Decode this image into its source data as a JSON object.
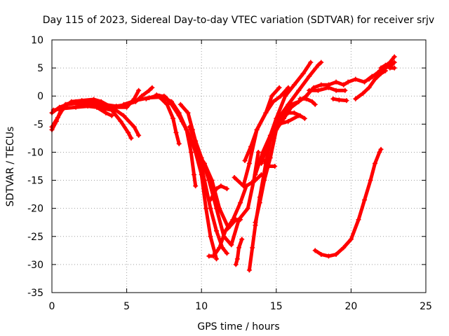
{
  "chart_data": {
    "type": "scatter",
    "title": "Day 115 of 2023, Sidereal Day-to-day VTEC variation (SDTVAR) for receiver srjv",
    "xlabel": "GPS time / hours",
    "ylabel": "SDTVAR / TECUs",
    "xlim": [
      0,
      25
    ],
    "ylim": [
      -35,
      10
    ],
    "xticks": [
      "0",
      "5",
      "10",
      "15",
      "20",
      "25"
    ],
    "yticks": [
      "-35",
      "-30",
      "-25",
      "-20",
      "-15",
      "-10",
      "-5",
      "0",
      "5",
      "10"
    ],
    "grid": true,
    "marker": "plus",
    "color": "#ff0000",
    "series": [
      {
        "points": [
          [
            0.0,
            -6.0
          ],
          [
            0.3,
            -4.5
          ],
          [
            0.6,
            -2.5
          ],
          [
            0.9,
            -1.5
          ],
          [
            1.3,
            -1.2
          ],
          [
            2.0,
            -1.5
          ],
          [
            3.0,
            -2.0
          ],
          [
            4.0,
            -2.5
          ],
          [
            4.6,
            -4.5
          ],
          [
            5.1,
            -6.5
          ],
          [
            5.3,
            -7.5
          ]
        ]
      },
      {
        "points": [
          [
            0.0,
            -5.5
          ],
          [
            0.4,
            -3.8
          ],
          [
            0.8,
            -2.0
          ],
          [
            1.3,
            -1.0
          ],
          [
            2.0,
            -0.8
          ],
          [
            2.8,
            -0.6
          ],
          [
            3.3,
            -1.0
          ],
          [
            4.0,
            -2.0
          ],
          [
            5.0,
            -2.0
          ],
          [
            5.5,
            -0.5
          ],
          [
            5.8,
            1.0
          ]
        ]
      },
      {
        "points": [
          [
            0.0,
            -3.0
          ],
          [
            0.5,
            -2.0
          ],
          [
            1.0,
            -1.5
          ],
          [
            2.0,
            -1.2
          ],
          [
            3.0,
            -1.5
          ],
          [
            4.0,
            -2.0
          ],
          [
            4.8,
            -3.5
          ],
          [
            5.5,
            -5.5
          ],
          [
            5.8,
            -7.0
          ]
        ]
      },
      {
        "points": [
          [
            0.1,
            -2.5
          ],
          [
            0.8,
            -2.2
          ],
          [
            1.6,
            -2.0
          ],
          [
            2.4,
            -1.8
          ],
          [
            3.0,
            -2.0
          ],
          [
            3.6,
            -3.0
          ],
          [
            4.0,
            -3.5
          ]
        ]
      },
      {
        "points": [
          [
            1.6,
            -1.0
          ],
          [
            2.5,
            -1.0
          ],
          [
            3.5,
            -1.5
          ],
          [
            4.3,
            -1.8
          ],
          [
            5.0,
            -1.5
          ],
          [
            5.6,
            -1.0
          ],
          [
            6.0,
            0.0
          ],
          [
            6.5,
            1.0
          ],
          [
            6.7,
            1.5
          ]
        ]
      },
      {
        "points": [
          [
            4.8,
            -1.5
          ],
          [
            5.6,
            -0.8
          ],
          [
            6.5,
            -0.3
          ],
          [
            7.2,
            -0.2
          ],
          [
            7.7,
            -1.5
          ],
          [
            8.1,
            -4.0
          ],
          [
            8.3,
            -6.5
          ],
          [
            8.5,
            -8.5
          ]
        ]
      },
      {
        "points": [
          [
            6.3,
            -0.5
          ],
          [
            6.9,
            0.0
          ],
          [
            7.5,
            0.0
          ],
          [
            8.0,
            -1.5
          ],
          [
            8.5,
            -3.5
          ],
          [
            9.0,
            -6.0
          ],
          [
            9.3,
            -10.0
          ],
          [
            9.5,
            -14.0
          ],
          [
            9.6,
            -16.0
          ]
        ]
      },
      {
        "points": [
          [
            7.0,
            0.2
          ],
          [
            7.6,
            -0.2
          ],
          [
            8.2,
            -2.0
          ],
          [
            8.7,
            -4.5
          ],
          [
            9.2,
            -7.0
          ],
          [
            9.6,
            -10.0
          ],
          [
            10.0,
            -14.0
          ],
          [
            10.3,
            -20.0
          ],
          [
            10.6,
            -25.0
          ],
          [
            10.9,
            -28.0
          ],
          [
            11.0,
            -29.0
          ]
        ]
      },
      {
        "points": [
          [
            7.2,
            0.0
          ],
          [
            8.0,
            -1.0
          ],
          [
            8.5,
            -3.0
          ],
          [
            9.0,
            -6.0
          ],
          [
            9.7,
            -10.0
          ],
          [
            10.2,
            -12.0
          ],
          [
            10.7,
            -15.0
          ],
          [
            11.2,
            -20.0
          ],
          [
            11.8,
            -23.5
          ],
          [
            12.3,
            -22.0
          ],
          [
            12.6,
            -22.0
          ]
        ]
      },
      {
        "points": [
          [
            8.6,
            -1.5
          ],
          [
            9.1,
            -3.0
          ],
          [
            9.4,
            -6.0
          ],
          [
            9.8,
            -10.0
          ],
          [
            10.2,
            -15.0
          ],
          [
            10.6,
            -20.0
          ],
          [
            11.0,
            -24.0
          ],
          [
            11.4,
            -27.0
          ],
          [
            11.7,
            -28.0
          ]
        ]
      },
      {
        "points": [
          [
            9.2,
            -5.5
          ],
          [
            9.6,
            -8.0
          ],
          [
            10.0,
            -11.0
          ],
          [
            10.5,
            -15.0
          ],
          [
            11.0,
            -20.0
          ],
          [
            11.5,
            -25.0
          ],
          [
            12.0,
            -26.5
          ],
          [
            12.5,
            -22.0
          ],
          [
            13.1,
            -20.0
          ],
          [
            13.5,
            -15.0
          ],
          [
            13.8,
            -10.0
          ]
        ]
      },
      {
        "points": [
          [
            10.5,
            -28.5
          ],
          [
            10.8,
            -28.5
          ],
          [
            11.2,
            -27.0
          ],
          [
            11.6,
            -24.0
          ],
          [
            12.1,
            -22.0
          ],
          [
            12.6,
            -19.0
          ],
          [
            13.0,
            -16.0
          ],
          [
            13.6,
            -15.0
          ],
          [
            14.0,
            -14.0
          ]
        ]
      },
      {
        "points": [
          [
            10.6,
            -18.5
          ],
          [
            11.0,
            -16.5
          ],
          [
            11.3,
            -16.0
          ],
          [
            11.7,
            -16.5
          ]
        ]
      },
      {
        "points": [
          [
            12.3,
            -30.0
          ],
          [
            12.4,
            -29.0
          ],
          [
            12.5,
            -27.0
          ],
          [
            12.7,
            -25.5
          ]
        ]
      },
      {
        "points": [
          [
            13.2,
            -31.0
          ],
          [
            13.4,
            -27.0
          ],
          [
            13.6,
            -23.0
          ],
          [
            13.9,
            -18.0
          ],
          [
            14.3,
            -12.0
          ],
          [
            14.6,
            -8.0
          ],
          [
            15.2,
            -5.0
          ],
          [
            15.8,
            -4.5
          ],
          [
            16.5,
            -3.5
          ]
        ]
      },
      {
        "points": [
          [
            13.6,
            -22.5
          ],
          [
            13.9,
            -19.0
          ],
          [
            14.2,
            -15.0
          ],
          [
            14.6,
            -11.0
          ],
          [
            15.0,
            -6.0
          ],
          [
            15.5,
            -4.0
          ],
          [
            16.0,
            -2.0
          ],
          [
            16.5,
            -1.0
          ]
        ]
      },
      {
        "points": [
          [
            12.2,
            -14.5
          ],
          [
            12.8,
            -16.0
          ],
          [
            13.2,
            -12.0
          ],
          [
            13.7,
            -6.0
          ],
          [
            14.3,
            -3.0
          ],
          [
            14.7,
            0.0
          ],
          [
            15.2,
            1.5
          ]
        ]
      },
      {
        "points": [
          [
            12.9,
            -11.5
          ],
          [
            13.3,
            -9.0
          ],
          [
            13.7,
            -6.0
          ],
          [
            14.3,
            -3.0
          ],
          [
            14.8,
            -1.0
          ],
          [
            15.3,
            0.0
          ],
          [
            15.8,
            1.5
          ]
        ]
      },
      {
        "points": [
          [
            13.6,
            -14.0
          ],
          [
            14.1,
            -10.0
          ],
          [
            14.6,
            -7.0
          ],
          [
            15.0,
            -4.0
          ],
          [
            15.6,
            0.0
          ],
          [
            16.2,
            2.0
          ],
          [
            16.8,
            4.0
          ],
          [
            17.3,
            6.0
          ]
        ]
      },
      {
        "points": [
          [
            14.0,
            -12.0
          ],
          [
            14.5,
            -8.0
          ],
          [
            15.0,
            -4.5
          ],
          [
            15.8,
            -1.5
          ],
          [
            16.5,
            1.0
          ],
          [
            17.2,
            3.5
          ],
          [
            17.8,
            5.5
          ],
          [
            18.0,
            6.0
          ]
        ]
      },
      {
        "points": [
          [
            15.0,
            -5.0
          ],
          [
            15.5,
            -3.0
          ],
          [
            16.0,
            -1.5
          ],
          [
            16.5,
            -1.0
          ],
          [
            17.0,
            0.0
          ],
          [
            17.5,
            1.5
          ],
          [
            18.0,
            2.0
          ],
          [
            18.5,
            2.0
          ],
          [
            19.0,
            2.5
          ],
          [
            19.5,
            2.0
          ]
        ]
      },
      {
        "points": [
          [
            14.2,
            -11.5
          ],
          [
            14.5,
            -12.5
          ],
          [
            14.9,
            -12.5
          ]
        ]
      },
      {
        "points": [
          [
            15.8,
            -3.0
          ],
          [
            16.2,
            -3.0
          ],
          [
            16.6,
            -3.5
          ],
          [
            16.9,
            -4.0
          ]
        ]
      },
      {
        "points": [
          [
            16.6,
            -0.5
          ],
          [
            17.0,
            -0.5
          ],
          [
            17.4,
            -1.0
          ],
          [
            17.6,
            -1.5
          ]
        ]
      },
      {
        "points": [
          [
            17.2,
            1.0
          ],
          [
            17.8,
            1.0
          ],
          [
            18.5,
            1.5
          ],
          [
            19.0,
            1.0
          ],
          [
            19.6,
            1.0
          ]
        ]
      },
      {
        "points": [
          [
            18.8,
            -0.5
          ],
          [
            19.2,
            -0.7
          ],
          [
            19.7,
            -0.8
          ]
        ]
      },
      {
        "points": [
          [
            20.3,
            -0.5
          ],
          [
            20.8,
            0.5
          ],
          [
            21.2,
            1.5
          ],
          [
            21.6,
            3.0
          ],
          [
            22.0,
            4.0
          ],
          [
            22.3,
            4.5
          ]
        ]
      },
      {
        "points": [
          [
            19.5,
            2.0
          ],
          [
            19.8,
            2.5
          ],
          [
            20.3,
            3.0
          ],
          [
            20.9,
            2.5
          ],
          [
            21.4,
            3.5
          ],
          [
            21.8,
            4.0
          ],
          [
            22.3,
            5.0
          ],
          [
            22.7,
            5.5
          ],
          [
            22.9,
            6.0
          ]
        ]
      },
      {
        "points": [
          [
            21.2,
            3.0
          ],
          [
            21.8,
            4.2
          ],
          [
            22.2,
            5.2
          ],
          [
            22.6,
            6.0
          ],
          [
            22.9,
            7.0
          ]
        ]
      },
      {
        "points": [
          [
            22.0,
            5.0
          ],
          [
            22.3,
            5.5
          ],
          [
            22.6,
            5.0
          ],
          [
            22.9,
            5.0
          ]
        ]
      },
      {
        "points": [
          [
            17.6,
            -27.5
          ],
          [
            18.0,
            -28.2
          ],
          [
            18.5,
            -28.5
          ],
          [
            19.0,
            -28.2
          ],
          [
            19.5,
            -27.0
          ],
          [
            20.0,
            -25.5
          ],
          [
            20.5,
            -22.0
          ],
          [
            20.9,
            -18.5
          ],
          [
            21.3,
            -15.0
          ],
          [
            21.6,
            -12.0
          ],
          [
            21.9,
            -10.0
          ],
          [
            22.0,
            -9.5
          ]
        ]
      }
    ]
  }
}
